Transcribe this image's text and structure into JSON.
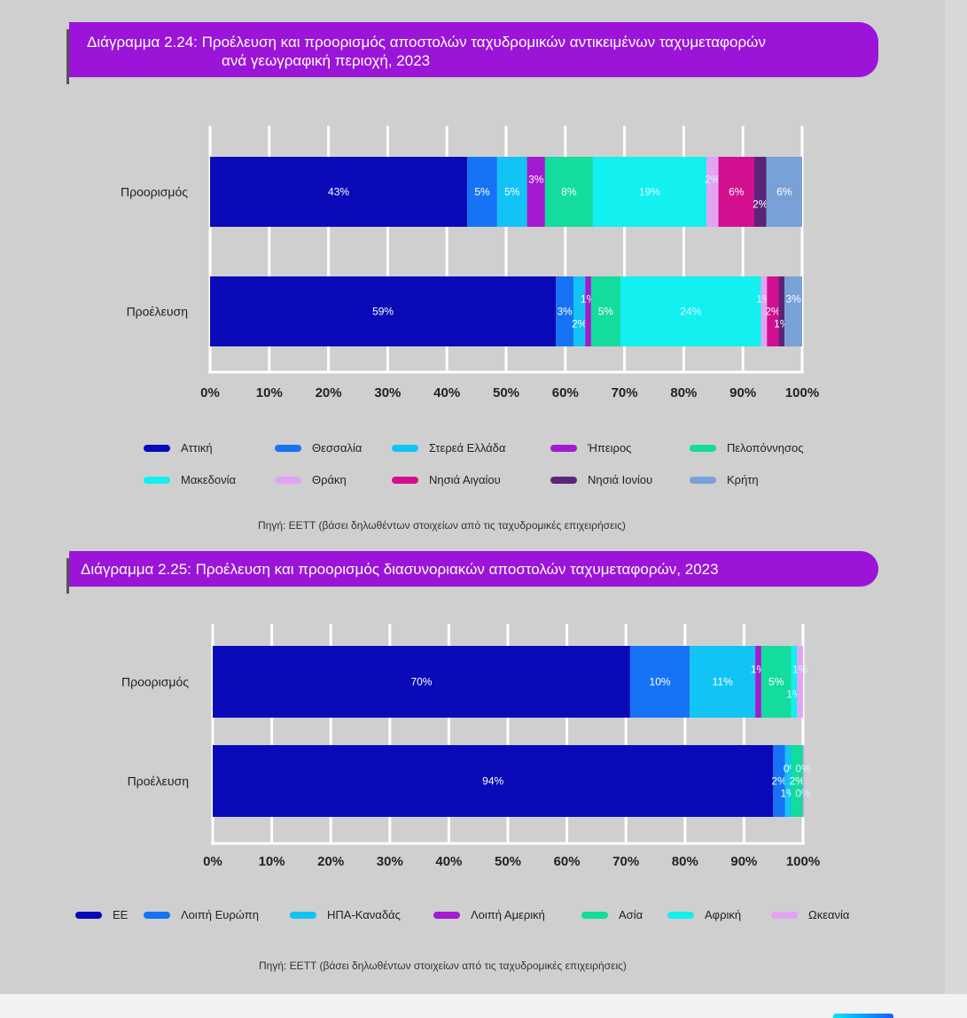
{
  "chart_data": [
    {
      "type": "bar",
      "orientation": "horizontal",
      "stacked": "percent",
      "title": "Διάγραμμα 2.24: Προέλευση και προορισμός αποστολών ταχυδρομικών αντικειμένων ταχυμεταφορών ανά γεωγραφική περιοχή, 2023",
      "title_line1": "Διάγραμμα 2.24: Προέλευση και προορισμός αποστολών ταχυδρομικών αντικειμένων ταχυμεταφορών",
      "title_line2": "ανά γεωγραφική περιοχή, 2023",
      "categories": [
        "Προορισμός",
        "Προέλευση"
      ],
      "xlim": [
        0,
        100
      ],
      "x_ticks": [
        "0%",
        "10%",
        "20%",
        "30%",
        "40%",
        "50%",
        "60%",
        "70%",
        "80%",
        "90%",
        "100%"
      ],
      "grid": true,
      "legend_position": "bottom",
      "series": [
        {
          "name": "Αττική",
          "color": "#0a0ab8",
          "values": [
            43,
            59
          ],
          "labels": [
            "43%",
            "59%"
          ]
        },
        {
          "name": "Θεσσαλία",
          "color": "#1673f5",
          "values": [
            5,
            3
          ],
          "labels": [
            "5%",
            "3%"
          ]
        },
        {
          "name": "Στερεά Ελλάδα",
          "color": "#12c3f6",
          "values": [
            5,
            2
          ],
          "labels": [
            "5%",
            "2%"
          ]
        },
        {
          "name": "Ήπειρος",
          "color": "#a31ad0",
          "values": [
            3,
            1
          ],
          "labels": [
            "3%",
            "1%"
          ]
        },
        {
          "name": "Πελοπόννησος",
          "color": "#13dc9d",
          "values": [
            8,
            5
          ],
          "labels": [
            "8%",
            "5%"
          ]
        },
        {
          "name": "Μακεδονία",
          "color": "#12f0f0",
          "values": [
            19,
            24
          ],
          "labels": [
            "19%",
            "24%"
          ]
        },
        {
          "name": "Θράκη",
          "color": "#e3a3f3",
          "values": [
            2,
            1
          ],
          "labels": [
            "2%",
            "1%"
          ]
        },
        {
          "name": "Νησιά Αιγαίου",
          "color": "#d20f8f",
          "values": [
            6,
            2
          ],
          "labels": [
            "6%",
            "2%"
          ]
        },
        {
          "name": "Νησιά Ιονίου",
          "color": "#5b2479",
          "values": [
            2,
            1
          ],
          "labels": [
            "2%",
            "1%"
          ]
        },
        {
          "name": "Κρήτη",
          "color": "#78a1d8",
          "values": [
            6,
            3
          ],
          "labels": [
            "6%",
            "3%"
          ]
        }
      ],
      "source": "Πηγή: ΕΕΤΤ (βάσει δηλωθέντων στοιχείων από τις ταχυδρομικές επιχειρήσεις)"
    },
    {
      "type": "bar",
      "orientation": "horizontal",
      "stacked": "percent",
      "title": "Διάγραμμα 2.25: Προέλευση και προορισμός διασυνοριακών αποστολών ταχυμεταφορών, 2023",
      "title_line1": "Διάγραμμα 2.25: Προέλευση και προορισμός διασυνοριακών αποστολών ταχυμεταφορών, 2023",
      "categories": [
        "Προορισμός",
        "Προέλευση"
      ],
      "xlim": [
        0,
        100
      ],
      "x_ticks": [
        "0%",
        "10%",
        "20%",
        "30%",
        "40%",
        "50%",
        "60%",
        "70%",
        "80%",
        "90%",
        "100%"
      ],
      "grid": true,
      "legend_position": "bottom",
      "series": [
        {
          "name": "ΕΕ",
          "color": "#0a0ab8",
          "values": [
            70,
            94
          ],
          "labels": [
            "70%",
            "94%"
          ]
        },
        {
          "name": "Λοιπή Ευρώπη",
          "color": "#1673f5",
          "values": [
            10,
            2
          ],
          "labels": [
            "10%",
            "2%"
          ]
        },
        {
          "name": "ΗΠΑ-Καναδάς",
          "color": "#12c3f6",
          "values": [
            11,
            1
          ],
          "labels": [
            "11%",
            "1%"
          ]
        },
        {
          "name": "Λοιπή Αμερική",
          "color": "#a31ad0",
          "values": [
            1,
            0
          ],
          "labels": [
            "1%",
            "0%"
          ]
        },
        {
          "name": "Ασία",
          "color": "#13dc9d",
          "values": [
            5,
            2
          ],
          "labels": [
            "5%",
            "2%"
          ]
        },
        {
          "name": "Αφρική",
          "color": "#12f0f0",
          "values": [
            1,
            0
          ],
          "labels": [
            "1%",
            "0%"
          ]
        },
        {
          "name": "Ωκεανία",
          "color": "#e3a3f3",
          "values": [
            1,
            0
          ],
          "labels": [
            "1%",
            "0%"
          ]
        }
      ],
      "source": "Πηγή: ΕΕΤΤ (βάσει δηλωθέντων στοιχείων από τις ταχυδρομικές επιχειρήσεις)"
    }
  ]
}
